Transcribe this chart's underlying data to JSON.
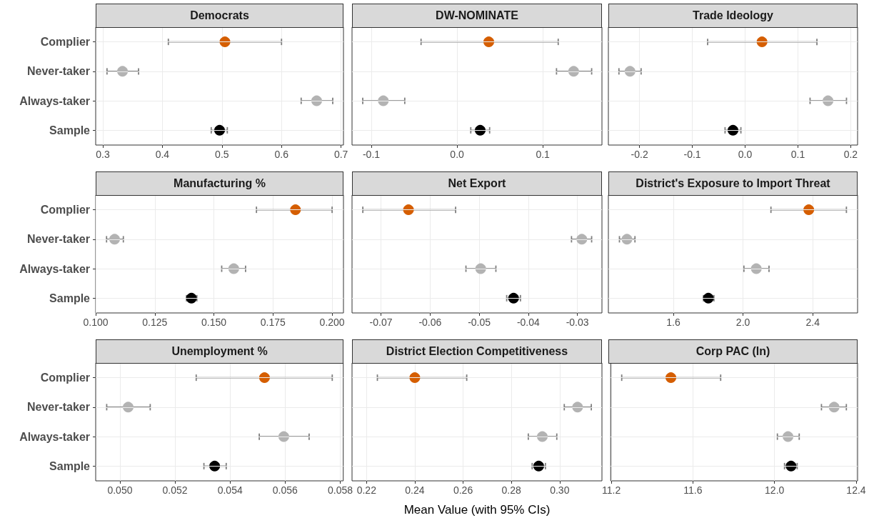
{
  "chart_data": [
    {
      "type": "scatter",
      "title": "Democrats",
      "orientation": "horizontal",
      "categories": [
        "Complier",
        "Never-taker",
        "Always-taker",
        "Sample"
      ],
      "values": [
        0.505,
        0.333,
        0.659,
        0.496
      ],
      "errors": [
        [
          0.41,
          0.6
        ],
        [
          0.307,
          0.36
        ],
        [
          0.633,
          0.686
        ],
        [
          0.482,
          0.509
        ]
      ],
      "colors": [
        "#d55e00",
        "#b3b3b3",
        "#b3b3b3",
        "#000000"
      ],
      "xlim": [
        0.288,
        0.704
      ],
      "xticks": [
        0.3,
        0.4,
        0.5,
        0.6,
        0.7
      ],
      "grid": true,
      "marker": "circle"
    },
    {
      "type": "scatter",
      "title": "DW-NOMINATE",
      "orientation": "horizontal",
      "categories": [
        null,
        null,
        null,
        null
      ],
      "values": [
        0.037,
        0.136,
        -0.086,
        0.027
      ],
      "errors": [
        [
          -0.042,
          0.118
        ],
        [
          0.116,
          0.157
        ],
        [
          -0.11,
          -0.061
        ],
        [
          0.016,
          0.038
        ]
      ],
      "colors": [
        "#d55e00",
        "#b3b3b3",
        "#b3b3b3",
        "#000000"
      ],
      "xlim": [
        -0.1225,
        0.169
      ],
      "xticks": [
        -0.1,
        {
          "value": 0,
          "label": "0.0"
        },
        0.1
      ],
      "grid": true,
      "marker": "circle",
      "tick_labels": "x"
    },
    {
      "type": "scatter",
      "title": "Trade Ideology",
      "orientation": "horizontal",
      "categories": [
        null,
        null,
        null,
        null
      ],
      "values": [
        0.032,
        -0.218,
        0.157,
        -0.023
      ],
      "errors": [
        [
          -0.071,
          0.136
        ],
        [
          -0.239,
          -0.197
        ],
        [
          0.123,
          0.192
        ],
        [
          -0.038,
          -0.008
        ]
      ],
      "colors": [
        "#d55e00",
        "#b3b3b3",
        "#b3b3b3",
        "#000000"
      ],
      "xlim": [
        -0.259,
        0.213
      ],
      "xticks": [
        -0.2,
        -0.1,
        {
          "value": 0,
          "label": "0.0"
        },
        0.1,
        0.2
      ],
      "grid": true,
      "marker": "circle",
      "tick_labels": "x"
    },
    {
      "type": "scatter",
      "title": "Manufacturing %",
      "orientation": "horizontal",
      "categories": [
        "Complier",
        "Never-taker",
        "Always-taker",
        "Sample"
      ],
      "values": [
        0.1845,
        0.108,
        0.1584,
        0.1405
      ],
      "errors": [
        [
          0.168,
          0.2
        ],
        [
          0.1046,
          0.1117
        ],
        [
          0.1533,
          0.1634
        ],
        [
          0.1384,
          0.1428
        ]
      ],
      "colors": [
        "#d55e00",
        "#b3b3b3",
        "#b3b3b3",
        "#000000"
      ],
      "xlim": [
        0.1,
        0.2048
      ],
      "xticks": [
        {
          "value": 0.1,
          "label": "0.100"
        },
        0.125,
        {
          "value": 0.15,
          "label": "0.150"
        },
        0.175,
        {
          "value": 0.2,
          "label": "0.200"
        }
      ],
      "grid": true,
      "marker": "circle"
    },
    {
      "type": "scatter",
      "title": "Net Export",
      "orientation": "horizontal",
      "categories": [
        null,
        null,
        null,
        null
      ],
      "values": [
        -0.0644,
        -0.0291,
        -0.0497,
        -0.043
      ],
      "errors": [
        [
          -0.0737,
          -0.0548
        ],
        [
          -0.0312,
          -0.0271
        ],
        [
          -0.0527,
          -0.0466
        ],
        [
          -0.0444,
          -0.0416
        ]
      ],
      "colors": [
        "#d55e00",
        "#b3b3b3",
        "#b3b3b3",
        "#000000"
      ],
      "xlim": [
        -0.0759,
        -0.025
      ],
      "xticks": [
        -0.07,
        -0.06,
        -0.05,
        -0.04,
        -0.03
      ],
      "grid": true,
      "marker": "circle",
      "tick_labels": "x"
    },
    {
      "type": "scatter",
      "title": "District's Exposure to Import Threat",
      "orientation": "horizontal",
      "categories": [
        null,
        null,
        null,
        null
      ],
      "values": [
        2.377,
        1.334,
        2.076,
        1.801
      ],
      "errors": [
        [
          2.16,
          2.593
        ],
        [
          1.291,
          1.38
        ],
        [
          2.005,
          2.149
        ],
        [
          1.773,
          1.833
        ]
      ],
      "colors": [
        "#d55e00",
        "#b3b3b3",
        "#b3b3b3",
        "#000000"
      ],
      "xlim": [
        1.2275,
        2.657
      ],
      "xticks": [
        1.6,
        {
          "value": 2,
          "label": "2.0"
        },
        2.4
      ],
      "grid": true,
      "marker": "circle",
      "tick_labels": "x"
    },
    {
      "type": "scatter",
      "title": "Unemployment %",
      "orientation": "horizontal",
      "categories": [
        "Complier",
        "Never-taker",
        "Always-taker",
        "Sample"
      ],
      "values": [
        0.05525,
        0.0503,
        0.05595,
        0.05344
      ],
      "errors": [
        [
          0.05277,
          0.05771
        ],
        [
          0.04952,
          0.0511
        ],
        [
          0.05506,
          0.05687
        ],
        [
          0.05305,
          0.05386
        ]
      ],
      "colors": [
        "#d55e00",
        "#b3b3b3",
        "#b3b3b3",
        "#000000"
      ],
      "xlim": [
        0.04912,
        0.05811
      ],
      "xticks": [
        {
          "value": 0.05,
          "label": "0.050"
        },
        0.052,
        0.054,
        0.056,
        0.058
      ],
      "grid": true,
      "marker": "circle"
    },
    {
      "type": "scatter",
      "title": "District Election Competitiveness",
      "orientation": "horizontal",
      "xlabel": "Mean Value (with 95% CIs)",
      "categories": [
        null,
        null,
        null,
        null
      ],
      "values": [
        0.24,
        0.3074,
        0.2928,
        0.2913
      ],
      "errors": [
        [
          0.2245,
          0.2615
        ],
        [
          0.3019,
          0.3131
        ],
        [
          0.287,
          0.2988
        ],
        [
          0.2886,
          0.2941
        ]
      ],
      "colors": [
        "#d55e00",
        "#b3b3b3",
        "#b3b3b3",
        "#000000"
      ],
      "xlim": [
        0.214,
        0.3175
      ],
      "xticks": [
        0.22,
        0.24,
        0.26,
        0.28,
        {
          "value": 0.3,
          "label": "0.30"
        }
      ],
      "grid": true,
      "marker": "circle",
      "tick_labels": "x"
    },
    {
      "type": "scatter",
      "title": "Corp PAC (ln)",
      "orientation": "horizontal",
      "categories": [
        null,
        null,
        null,
        null
      ],
      "values": [
        11.492,
        12.292,
        12.066,
        12.081
      ],
      "errors": [
        [
          11.251,
          11.736
        ],
        [
          12.23,
          12.352
        ],
        [
          12.014,
          12.121
        ],
        [
          12.049,
          12.111
        ]
      ],
      "colors": [
        "#d55e00",
        "#b3b3b3",
        "#b3b3b3",
        "#000000"
      ],
      "xlim": [
        11.197,
        12.407
      ],
      "xticks": [
        11.2,
        11.6,
        {
          "value": 12,
          "label": "12.0"
        },
        12.4
      ],
      "grid": true,
      "marker": "circle",
      "tick_labels": "x"
    }
  ]
}
